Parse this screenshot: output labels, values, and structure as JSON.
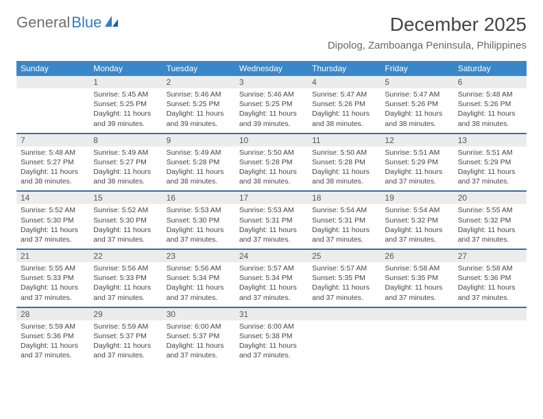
{
  "logo": {
    "text1": "General",
    "text2": "Blue"
  },
  "title": "December 2025",
  "location": "Dipolog, Zamboanga Peninsula, Philippines",
  "colors": {
    "header_bg": "#3a87c8",
    "header_text": "#ffffff",
    "week_divider": "#3a6d9a",
    "daynum_bg": "#ececec",
    "text": "#444444",
    "logo_gray": "#6f6f6f",
    "logo_blue": "#2f7dc0"
  },
  "weekdays": [
    "Sunday",
    "Monday",
    "Tuesday",
    "Wednesday",
    "Thursday",
    "Friday",
    "Saturday"
  ],
  "weeks": [
    [
      {
        "n": "",
        "lines": []
      },
      {
        "n": "1",
        "lines": [
          "Sunrise: 5:45 AM",
          "Sunset: 5:25 PM",
          "Daylight: 11 hours",
          "and 39 minutes."
        ]
      },
      {
        "n": "2",
        "lines": [
          "Sunrise: 5:46 AM",
          "Sunset: 5:25 PM",
          "Daylight: 11 hours",
          "and 39 minutes."
        ]
      },
      {
        "n": "3",
        "lines": [
          "Sunrise: 5:46 AM",
          "Sunset: 5:25 PM",
          "Daylight: 11 hours",
          "and 39 minutes."
        ]
      },
      {
        "n": "4",
        "lines": [
          "Sunrise: 5:47 AM",
          "Sunset: 5:26 PM",
          "Daylight: 11 hours",
          "and 38 minutes."
        ]
      },
      {
        "n": "5",
        "lines": [
          "Sunrise: 5:47 AM",
          "Sunset: 5:26 PM",
          "Daylight: 11 hours",
          "and 38 minutes."
        ]
      },
      {
        "n": "6",
        "lines": [
          "Sunrise: 5:48 AM",
          "Sunset: 5:26 PM",
          "Daylight: 11 hours",
          "and 38 minutes."
        ]
      }
    ],
    [
      {
        "n": "7",
        "lines": [
          "Sunrise: 5:48 AM",
          "Sunset: 5:27 PM",
          "Daylight: 11 hours",
          "and 38 minutes."
        ]
      },
      {
        "n": "8",
        "lines": [
          "Sunrise: 5:49 AM",
          "Sunset: 5:27 PM",
          "Daylight: 11 hours",
          "and 38 minutes."
        ]
      },
      {
        "n": "9",
        "lines": [
          "Sunrise: 5:49 AM",
          "Sunset: 5:28 PM",
          "Daylight: 11 hours",
          "and 38 minutes."
        ]
      },
      {
        "n": "10",
        "lines": [
          "Sunrise: 5:50 AM",
          "Sunset: 5:28 PM",
          "Daylight: 11 hours",
          "and 38 minutes."
        ]
      },
      {
        "n": "11",
        "lines": [
          "Sunrise: 5:50 AM",
          "Sunset: 5:28 PM",
          "Daylight: 11 hours",
          "and 38 minutes."
        ]
      },
      {
        "n": "12",
        "lines": [
          "Sunrise: 5:51 AM",
          "Sunset: 5:29 PM",
          "Daylight: 11 hours",
          "and 37 minutes."
        ]
      },
      {
        "n": "13",
        "lines": [
          "Sunrise: 5:51 AM",
          "Sunset: 5:29 PM",
          "Daylight: 11 hours",
          "and 37 minutes."
        ]
      }
    ],
    [
      {
        "n": "14",
        "lines": [
          "Sunrise: 5:52 AM",
          "Sunset: 5:30 PM",
          "Daylight: 11 hours",
          "and 37 minutes."
        ]
      },
      {
        "n": "15",
        "lines": [
          "Sunrise: 5:52 AM",
          "Sunset: 5:30 PM",
          "Daylight: 11 hours",
          "and 37 minutes."
        ]
      },
      {
        "n": "16",
        "lines": [
          "Sunrise: 5:53 AM",
          "Sunset: 5:30 PM",
          "Daylight: 11 hours",
          "and 37 minutes."
        ]
      },
      {
        "n": "17",
        "lines": [
          "Sunrise: 5:53 AM",
          "Sunset: 5:31 PM",
          "Daylight: 11 hours",
          "and 37 minutes."
        ]
      },
      {
        "n": "18",
        "lines": [
          "Sunrise: 5:54 AM",
          "Sunset: 5:31 PM",
          "Daylight: 11 hours",
          "and 37 minutes."
        ]
      },
      {
        "n": "19",
        "lines": [
          "Sunrise: 5:54 AM",
          "Sunset: 5:32 PM",
          "Daylight: 11 hours",
          "and 37 minutes."
        ]
      },
      {
        "n": "20",
        "lines": [
          "Sunrise: 5:55 AM",
          "Sunset: 5:32 PM",
          "Daylight: 11 hours",
          "and 37 minutes."
        ]
      }
    ],
    [
      {
        "n": "21",
        "lines": [
          "Sunrise: 5:55 AM",
          "Sunset: 5:33 PM",
          "Daylight: 11 hours",
          "and 37 minutes."
        ]
      },
      {
        "n": "22",
        "lines": [
          "Sunrise: 5:56 AM",
          "Sunset: 5:33 PM",
          "Daylight: 11 hours",
          "and 37 minutes."
        ]
      },
      {
        "n": "23",
        "lines": [
          "Sunrise: 5:56 AM",
          "Sunset: 5:34 PM",
          "Daylight: 11 hours",
          "and 37 minutes."
        ]
      },
      {
        "n": "24",
        "lines": [
          "Sunrise: 5:57 AM",
          "Sunset: 5:34 PM",
          "Daylight: 11 hours",
          "and 37 minutes."
        ]
      },
      {
        "n": "25",
        "lines": [
          "Sunrise: 5:57 AM",
          "Sunset: 5:35 PM",
          "Daylight: 11 hours",
          "and 37 minutes."
        ]
      },
      {
        "n": "26",
        "lines": [
          "Sunrise: 5:58 AM",
          "Sunset: 5:35 PM",
          "Daylight: 11 hours",
          "and 37 minutes."
        ]
      },
      {
        "n": "27",
        "lines": [
          "Sunrise: 5:58 AM",
          "Sunset: 5:36 PM",
          "Daylight: 11 hours",
          "and 37 minutes."
        ]
      }
    ],
    [
      {
        "n": "28",
        "lines": [
          "Sunrise: 5:59 AM",
          "Sunset: 5:36 PM",
          "Daylight: 11 hours",
          "and 37 minutes."
        ]
      },
      {
        "n": "29",
        "lines": [
          "Sunrise: 5:59 AM",
          "Sunset: 5:37 PM",
          "Daylight: 11 hours",
          "and 37 minutes."
        ]
      },
      {
        "n": "30",
        "lines": [
          "Sunrise: 6:00 AM",
          "Sunset: 5:37 PM",
          "Daylight: 11 hours",
          "and 37 minutes."
        ]
      },
      {
        "n": "31",
        "lines": [
          "Sunrise: 6:00 AM",
          "Sunset: 5:38 PM",
          "Daylight: 11 hours",
          "and 37 minutes."
        ]
      },
      {
        "n": "",
        "lines": []
      },
      {
        "n": "",
        "lines": []
      },
      {
        "n": "",
        "lines": []
      }
    ]
  ]
}
